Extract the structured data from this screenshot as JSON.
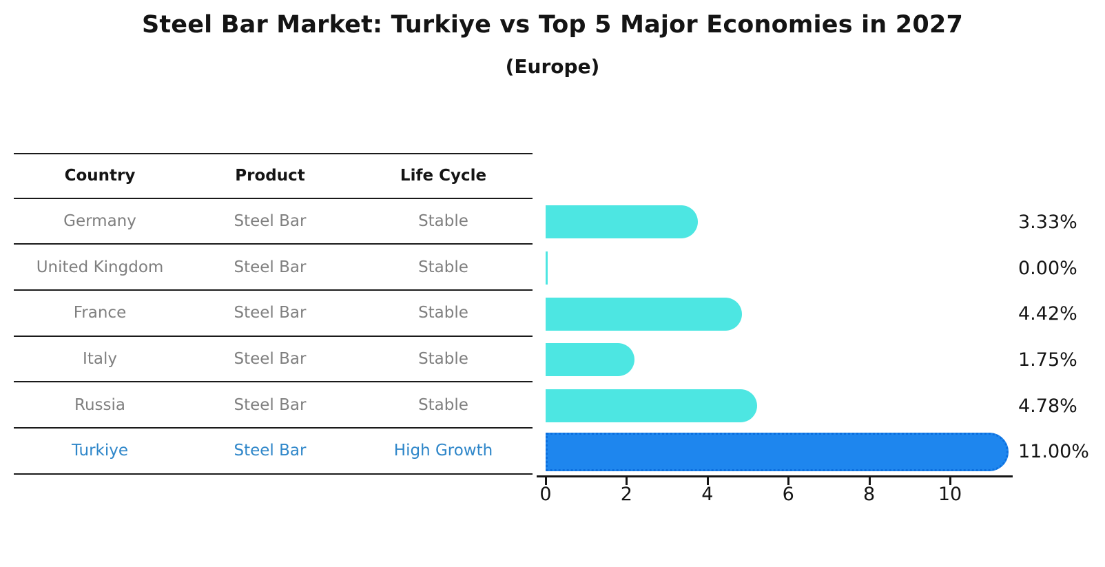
{
  "title": "Steel Bar Market: Turkiye vs Top 5 Major Economies in 2027",
  "subtitle": "(Europe)",
  "table": {
    "headers": [
      "Country",
      "Product",
      "Life Cycle"
    ],
    "rows": [
      {
        "country": "Germany",
        "product": "Steel Bar",
        "life_cycle": "Stable",
        "highlight": false
      },
      {
        "country": "United Kingdom",
        "product": "Steel Bar",
        "life_cycle": "Stable",
        "highlight": false
      },
      {
        "country": "France",
        "product": "Steel Bar",
        "life_cycle": "Stable",
        "highlight": false
      },
      {
        "country": "Italy",
        "product": "Steel Bar",
        "life_cycle": "Stable",
        "highlight": false
      },
      {
        "country": "Russia",
        "product": "Steel Bar",
        "life_cycle": "Stable",
        "highlight": false
      },
      {
        "country": "Turkiye",
        "product": "Steel Bar",
        "life_cycle": "High Growth",
        "highlight": true
      }
    ]
  },
  "chart_data": {
    "type": "bar",
    "orientation": "horizontal",
    "title": "Steel Bar Market: Turkiye vs Top 5 Major Economies in 2027",
    "subtitle": "(Europe)",
    "categories": [
      "Germany",
      "United Kingdom",
      "France",
      "Italy",
      "Russia",
      "Turkiye"
    ],
    "values": [
      3.33,
      0.0,
      4.42,
      1.75,
      4.78,
      11.0
    ],
    "value_labels": [
      "3.33%",
      "0.00%",
      "4.42%",
      "1.75%",
      "4.78%",
      "11.00%"
    ],
    "highlight_index": 5,
    "xlabel": "",
    "ylabel": "",
    "xlim": [
      0,
      11.55
    ],
    "x_ticks": [
      0,
      2,
      4,
      6,
      8,
      10
    ],
    "grid": false,
    "legend": "none"
  },
  "colors": {
    "bar": "#4de6e2",
    "highlight_bar": "#1e86ee",
    "highlight_bar_edge": "#0c6fde",
    "highlight_text": "#2e86c9",
    "table_text": "#7f7f7f",
    "axis_text": "#141414",
    "background": "#ffffff"
  }
}
